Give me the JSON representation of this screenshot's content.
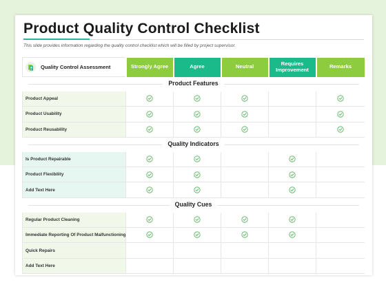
{
  "title": "Product Quality Control Checklist",
  "subtitle": "This slide provides information regarding the quality control checklist which will be filled by project supervisor.",
  "colors": {
    "teal": "#1aba8a",
    "green": "#8ccc3e",
    "label_fill_green": "#f1f8ea",
    "label_fill_teal": "#e6f6f0",
    "check": "#4caf50"
  },
  "header": {
    "first": "Quality Control Assessment",
    "icon": "document-icon",
    "columns": [
      {
        "label": "Strongly Agree",
        "color": "#8ccc3e"
      },
      {
        "label": "Agree",
        "color": "#1aba8a"
      },
      {
        "label": "Neutral",
        "color": "#8ccc3e"
      },
      {
        "label": "Requires Improvement",
        "color": "#1aba8a"
      },
      {
        "label": "Remarks",
        "color": "#8ccc3e"
      }
    ]
  },
  "sections": [
    {
      "title": "Product Features",
      "label_fill": "#f1f8ea",
      "rows": [
        {
          "label": "Product Appeal",
          "checks": [
            true,
            true,
            true,
            false,
            true
          ]
        },
        {
          "label": "Product Usability",
          "checks": [
            true,
            true,
            true,
            false,
            true
          ]
        },
        {
          "label": "Product Reusability",
          "checks": [
            true,
            true,
            true,
            false,
            true
          ]
        }
      ]
    },
    {
      "title": "Quality Indicators",
      "label_fill": "#e6f6f0",
      "rows": [
        {
          "label": "Is Product Repairable",
          "checks": [
            true,
            true,
            false,
            true,
            false
          ]
        },
        {
          "label": "Product Flexibility",
          "checks": [
            true,
            true,
            false,
            true,
            false
          ]
        },
        {
          "label": "Add Text Here",
          "checks": [
            true,
            true,
            false,
            true,
            false
          ]
        }
      ]
    },
    {
      "title": "Quality Cues",
      "label_fill": "#f1f8ea",
      "rows": [
        {
          "label": "Regular Product Cleaning",
          "checks": [
            true,
            true,
            true,
            true,
            false
          ]
        },
        {
          "label": "Immediate Reporting Of Product Malfunctioning",
          "checks": [
            true,
            true,
            true,
            true,
            false
          ]
        },
        {
          "label": "Quick Repairs",
          "checks": [
            false,
            false,
            false,
            false,
            false
          ]
        },
        {
          "label": "Add Text Here",
          "checks": [
            false,
            false,
            false,
            false,
            false
          ]
        }
      ]
    }
  ]
}
